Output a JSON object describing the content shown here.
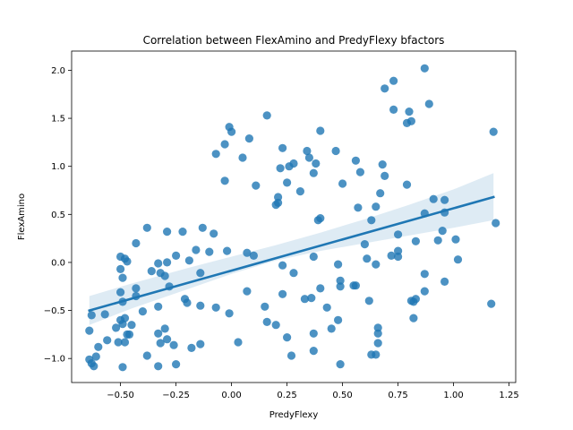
{
  "chart_data": {
    "type": "scatter",
    "title": "Correlation between FlexAmino and PredyFlexy bfactors",
    "xlabel": "PredyFlexy",
    "ylabel": "FlexAmino",
    "xlim": [
      -0.72,
      1.28
    ],
    "ylim": [
      -1.25,
      2.2
    ],
    "xticks": [
      -0.5,
      -0.25,
      0.0,
      0.25,
      0.5,
      0.75,
      1.0,
      1.25
    ],
    "xtick_labels": [
      "−0.50",
      "−0.25",
      "0.00",
      "0.25",
      "0.50",
      "0.75",
      "1.00",
      "1.25"
    ],
    "yticks": [
      -1.0,
      -0.5,
      0.0,
      0.5,
      1.0,
      1.5,
      2.0
    ],
    "ytick_labels": [
      "−1.0",
      "−0.5",
      "0.0",
      "0.5",
      "1.0",
      "1.5",
      "2.0"
    ],
    "grid": false,
    "marker_color": "#1f77b4",
    "regression": {
      "x": [
        -0.64,
        1.18
      ],
      "y": [
        -0.5,
        0.68
      ],
      "ci_lower_x": [
        -0.64,
        -0.45,
        -0.2,
        0.0,
        0.2,
        0.4,
        0.6,
        0.8,
        1.0,
        1.18
      ],
      "ci_lower_y": [
        -0.65,
        -0.48,
        -0.28,
        -0.12,
        0.02,
        0.12,
        0.2,
        0.28,
        0.36,
        0.44
      ],
      "ci_upper_y": [
        -0.35,
        -0.22,
        -0.06,
        0.06,
        0.18,
        0.31,
        0.45,
        0.6,
        0.76,
        0.93
      ],
      "color": "#1f77b4",
      "band_color": "#1f77b4"
    },
    "points": [
      [
        -0.64,
        -1.01
      ],
      [
        -0.63,
        -1.05
      ],
      [
        -0.62,
        -1.08
      ],
      [
        -0.61,
        -0.98
      ],
      [
        -0.6,
        -0.88
      ],
      [
        -0.64,
        -0.71
      ],
      [
        -0.63,
        -0.55
      ],
      [
        -0.57,
        -0.54
      ],
      [
        -0.56,
        -0.81
      ],
      [
        -0.52,
        -0.68
      ],
      [
        -0.51,
        -0.83
      ],
      [
        -0.5,
        -0.6
      ],
      [
        -0.49,
        -0.64
      ],
      [
        -0.48,
        -0.58
      ],
      [
        -0.49,
        -0.41
      ],
      [
        -0.5,
        -0.31
      ],
      [
        -0.49,
        -1.09
      ],
      [
        -0.48,
        -0.83
      ],
      [
        -0.47,
        -0.75
      ],
      [
        -0.46,
        -0.75
      ],
      [
        -0.45,
        -0.65
      ],
      [
        -0.43,
        -0.35
      ],
      [
        -0.43,
        -0.27
      ],
      [
        -0.5,
        -0.07
      ],
      [
        -0.5,
        0.06
      ],
      [
        -0.48,
        0.04
      ],
      [
        -0.47,
        0.01
      ],
      [
        -0.49,
        -0.16
      ],
      [
        -0.43,
        0.2
      ],
      [
        -0.4,
        -0.51
      ],
      [
        -0.38,
        -0.97
      ],
      [
        -0.38,
        0.36
      ],
      [
        -0.36,
        -0.09
      ],
      [
        -0.33,
        -1.08
      ],
      [
        -0.33,
        -0.74
      ],
      [
        -0.32,
        -0.84
      ],
      [
        -0.33,
        -0.46
      ],
      [
        -0.33,
        -0.01
      ],
      [
        -0.32,
        -0.11
      ],
      [
        -0.3,
        -0.69
      ],
      [
        -0.29,
        -0.8
      ],
      [
        -0.3,
        -0.14
      ],
      [
        -0.29,
        0.0
      ],
      [
        -0.29,
        0.32
      ],
      [
        -0.28,
        -0.25
      ],
      [
        -0.26,
        -0.86
      ],
      [
        -0.25,
        -1.06
      ],
      [
        -0.25,
        0.07
      ],
      [
        -0.22,
        0.32
      ],
      [
        -0.21,
        -0.38
      ],
      [
        -0.2,
        -0.42
      ],
      [
        -0.19,
        0.02
      ],
      [
        -0.18,
        -0.89
      ],
      [
        -0.16,
        0.13
      ],
      [
        -0.14,
        -0.85
      ],
      [
        -0.14,
        -0.45
      ],
      [
        -0.14,
        -0.11
      ],
      [
        -0.13,
        0.36
      ],
      [
        -0.1,
        0.11
      ],
      [
        -0.08,
        0.3
      ],
      [
        -0.07,
        -0.47
      ],
      [
        -0.07,
        1.13
      ],
      [
        -0.03,
        0.85
      ],
      [
        -0.03,
        1.23
      ],
      [
        -0.02,
        0.12
      ],
      [
        -0.01,
        -0.53
      ],
      [
        -0.01,
        1.41
      ],
      [
        0.0,
        1.36
      ],
      [
        0.03,
        -0.83
      ],
      [
        0.05,
        1.09
      ],
      [
        0.07,
        -0.3
      ],
      [
        0.07,
        0.1
      ],
      [
        0.08,
        1.29
      ],
      [
        0.1,
        0.07
      ],
      [
        0.11,
        0.8
      ],
      [
        0.15,
        -0.46
      ],
      [
        0.16,
        -0.62
      ],
      [
        0.16,
        1.53
      ],
      [
        0.2,
        -0.65
      ],
      [
        0.2,
        0.6
      ],
      [
        0.21,
        0.62
      ],
      [
        0.21,
        0.68
      ],
      [
        0.22,
        0.98
      ],
      [
        0.23,
        1.19
      ],
      [
        0.23,
        -0.33
      ],
      [
        0.23,
        -0.03
      ],
      [
        0.25,
        -0.78
      ],
      [
        0.25,
        0.83
      ],
      [
        0.26,
        1.0
      ],
      [
        0.27,
        -0.97
      ],
      [
        0.28,
        -0.11
      ],
      [
        0.28,
        1.03
      ],
      [
        0.31,
        0.74
      ],
      [
        0.33,
        -0.38
      ],
      [
        0.34,
        1.16
      ],
      [
        0.35,
        1.09
      ],
      [
        0.36,
        -0.37
      ],
      [
        0.37,
        0.06
      ],
      [
        0.37,
        0.93
      ],
      [
        0.37,
        -0.74
      ],
      [
        0.37,
        -0.92
      ],
      [
        0.39,
        0.44
      ],
      [
        0.4,
        1.37
      ],
      [
        0.4,
        0.46
      ],
      [
        0.38,
        1.03
      ],
      [
        0.4,
        -0.27
      ],
      [
        0.43,
        -0.47
      ],
      [
        0.45,
        -0.69
      ],
      [
        0.47,
        1.16
      ],
      [
        0.48,
        -0.02
      ],
      [
        0.49,
        -0.19
      ],
      [
        0.5,
        0.82
      ],
      [
        0.48,
        -0.6
      ],
      [
        0.49,
        -1.06
      ],
      [
        0.49,
        -0.25
      ],
      [
        0.55,
        -0.24
      ],
      [
        0.56,
        -0.24
      ],
      [
        0.56,
        1.06
      ],
      [
        0.57,
        0.57
      ],
      [
        0.58,
        0.94
      ],
      [
        0.6,
        0.19
      ],
      [
        0.61,
        0.04
      ],
      [
        0.62,
        -0.4
      ],
      [
        0.63,
        -0.96
      ],
      [
        0.63,
        0.44
      ],
      [
        0.65,
        -0.96
      ],
      [
        0.65,
        0.58
      ],
      [
        0.66,
        -0.68
      ],
      [
        0.66,
        -0.74
      ],
      [
        0.66,
        -0.84
      ],
      [
        0.65,
        -0.02
      ],
      [
        0.67,
        0.72
      ],
      [
        0.68,
        1.02
      ],
      [
        0.69,
        0.9
      ],
      [
        0.69,
        1.81
      ],
      [
        0.72,
        0.07
      ],
      [
        0.73,
        1.59
      ],
      [
        0.73,
        1.89
      ],
      [
        0.75,
        0.29
      ],
      [
        0.75,
        0.06
      ],
      [
        0.75,
        0.12
      ],
      [
        0.79,
        0.81
      ],
      [
        0.79,
        1.45
      ],
      [
        0.8,
        1.57
      ],
      [
        0.81,
        1.47
      ],
      [
        0.81,
        -0.4
      ],
      [
        0.82,
        -0.41
      ],
      [
        0.82,
        -0.58
      ],
      [
        0.83,
        -0.38
      ],
      [
        0.83,
        0.22
      ],
      [
        0.87,
        -0.12
      ],
      [
        0.87,
        -0.3
      ],
      [
        0.87,
        0.51
      ],
      [
        0.87,
        2.02
      ],
      [
        0.89,
        1.65
      ],
      [
        0.91,
        0.66
      ],
      [
        0.93,
        0.23
      ],
      [
        0.95,
        0.33
      ],
      [
        0.96,
        0.65
      ],
      [
        0.96,
        -0.2
      ],
      [
        0.96,
        0.52
      ],
      [
        1.01,
        0.24
      ],
      [
        1.02,
        0.03
      ],
      [
        1.17,
        -0.43
      ],
      [
        1.18,
        1.36
      ],
      [
        1.19,
        0.41
      ]
    ]
  }
}
